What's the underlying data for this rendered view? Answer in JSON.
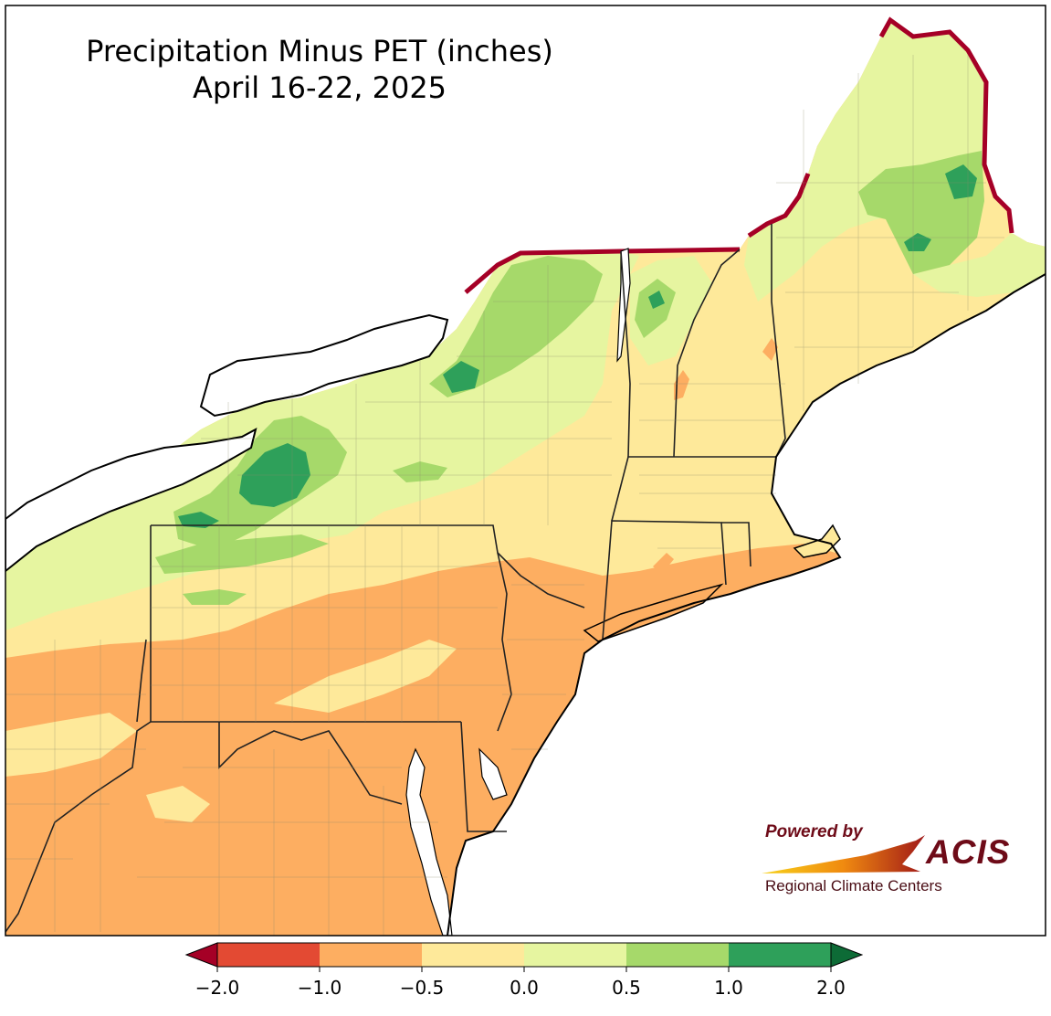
{
  "title": {
    "line1": "Precipitation Minus PET (inches)",
    "line2": "April 16-22, 2025"
  },
  "logo": {
    "powered": "Powered by",
    "name": "ACIS",
    "subtitle": "Regional Climate Centers"
  },
  "legend": {
    "ticks": [
      "−2.0",
      "−1.0",
      "−0.5",
      "0.0",
      "0.5",
      "1.0",
      "2.0"
    ],
    "colors": {
      "below_-2": "#a50026",
      "-2_to_-1": "#e34a33",
      "-1_to_-0.5": "#fdae61",
      "-0.5_to_0": "#fee99a",
      "0_to_0.5": "#e6f5a0",
      "0.5_to_1": "#a6d96a",
      "1_to_2": "#2ea05a",
      "above_2": "#0d6b36"
    }
  },
  "map": {
    "water_color": "#ffffff",
    "border_color": "#000000"
  }
}
